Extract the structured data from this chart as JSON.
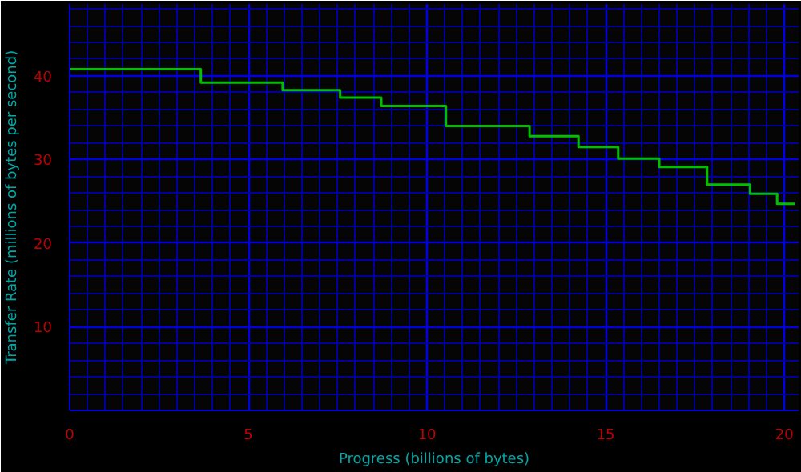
{
  "chart_data": {
    "type": "step",
    "xlabel": "Progress (billions of bytes)",
    "ylabel": "Transfer Rate (millions of bytes per second)",
    "x": [
      0,
      3.67,
      5.96,
      7.57,
      8.72,
      10.53,
      12.87,
      14.24,
      15.35,
      16.5,
      17.84,
      19.04,
      19.8,
      20.3
    ],
    "values": [
      40.8,
      39.2,
      38.3,
      37.4,
      36.4,
      34.0,
      32.8,
      31.5,
      30.1,
      29.1,
      27.0,
      25.9,
      24.7,
      24.7
    ],
    "color": "#00c000",
    "xlim": [
      0,
      20.4
    ],
    "ylim": [
      0,
      48.6
    ],
    "xticks": [
      0,
      {
        "value": 0.5,
        "label": null
      },
      {
        "value": 1,
        "label": null
      },
      {
        "value": 1.5,
        "label": null
      },
      {
        "value": 2,
        "label": null
      },
      {
        "value": 2.5,
        "label": null
      },
      {
        "value": 3,
        "label": null
      },
      {
        "value": 3.5,
        "label": null
      },
      {
        "value": 4,
        "label": null
      },
      {
        "value": 4.5,
        "label": null
      },
      5,
      {
        "value": 5.5,
        "label": null
      },
      {
        "value": 6,
        "label": null
      },
      {
        "value": 6.5,
        "label": null
      },
      {
        "value": 7,
        "label": null
      },
      {
        "value": 7.5,
        "label": null
      },
      {
        "value": 8,
        "label": null
      },
      {
        "value": 8.5,
        "label": null
      },
      {
        "value": 9,
        "label": null
      },
      {
        "value": 9.5,
        "label": null
      },
      10,
      {
        "value": 10.5,
        "label": null
      },
      {
        "value": 11,
        "label": null
      },
      {
        "value": 11.5,
        "label": null
      },
      {
        "value": 12,
        "label": null
      },
      {
        "value": 12.5,
        "label": null
      },
      {
        "value": 13,
        "label": null
      },
      {
        "value": 13.5,
        "label": null
      },
      {
        "value": 14,
        "label": null
      },
      {
        "value": 14.5,
        "label": null
      },
      15,
      {
        "value": 15.5,
        "label": null
      },
      {
        "value": 16,
        "label": null
      },
      {
        "value": 16.5,
        "label": null
      },
      {
        "value": 17,
        "label": null
      },
      {
        "value": 17.5,
        "label": null
      },
      {
        "value": 18,
        "label": null
      },
      {
        "value": 18.5,
        "label": null
      },
      {
        "value": 19,
        "label": null
      },
      {
        "value": 19.5,
        "label": null
      },
      20
    ],
    "yticks": [
      {
        "value": 2,
        "label": null
      },
      {
        "value": 4,
        "label": null
      },
      {
        "value": 6,
        "label": null
      },
      {
        "value": 8,
        "label": null
      },
      10,
      {
        "value": 12,
        "label": null
      },
      {
        "value": 14,
        "label": null
      },
      {
        "value": 16,
        "label": null
      },
      {
        "value": 18,
        "label": null
      },
      20,
      {
        "value": 22,
        "label": null
      },
      {
        "value": 24,
        "label": null
      },
      {
        "value": 26,
        "label": null
      },
      {
        "value": 28,
        "label": null
      },
      30,
      {
        "value": 32,
        "label": null
      },
      {
        "value": 34,
        "label": null
      },
      {
        "value": 36,
        "label": null
      },
      {
        "value": 38,
        "label": null
      },
      40,
      {
        "value": 42,
        "label": null
      },
      {
        "value": 44,
        "label": null
      },
      {
        "value": 46,
        "label": null
      },
      {
        "value": 48,
        "label": null
      }
    ],
    "grid": true,
    "marker": "none",
    "line_style": "solid"
  }
}
